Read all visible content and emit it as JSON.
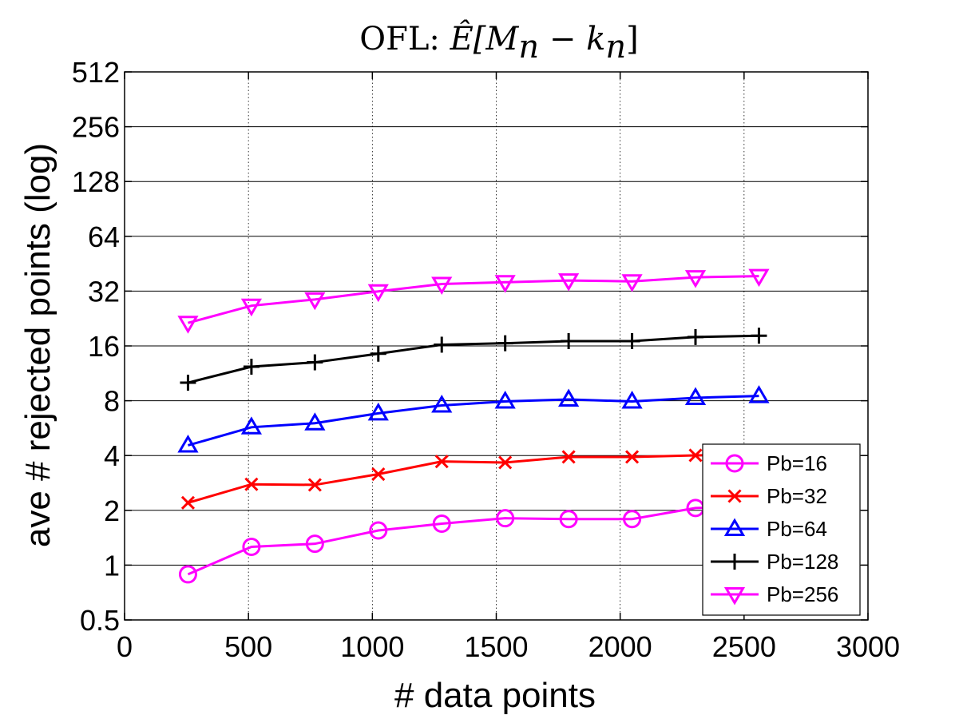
{
  "chart_data": {
    "type": "line",
    "title": "OFL: Ê[Mₙ − kₙ]",
    "title_prefix": "OFL: ",
    "title_math": "Ê[M",
    "title_sub1": "n",
    "title_mid": " − k",
    "title_sub2": "n",
    "title_end": "]",
    "xlabel": "# data points",
    "ylabel": "ave # rejected points (log)",
    "xlim": [
      0,
      3000
    ],
    "ylim": [
      0.5,
      512
    ],
    "yscale": "log2",
    "x_ticks": [
      0,
      500,
      1000,
      1500,
      2000,
      2500,
      3000
    ],
    "y_ticks": [
      0.5,
      1,
      2,
      4,
      8,
      16,
      32,
      64,
      128,
      256,
      512
    ],
    "x_tick_labels": [
      "0",
      "500",
      "1000",
      "1500",
      "2000",
      "2500",
      "3000"
    ],
    "y_tick_labels": [
      "0.5",
      "1",
      "2",
      "4",
      "8",
      "16",
      "32",
      "64",
      "128",
      "256",
      "512"
    ],
    "grid": "x dotted, y solid",
    "legend_position": "bottom-right",
    "x": [
      256,
      512,
      768,
      1024,
      1280,
      1536,
      1792,
      2048,
      2304,
      2560
    ],
    "series": [
      {
        "name": "Pb=16",
        "color": "#ff00ff",
        "marker": "circle",
        "values": [
          0.89,
          1.26,
          1.31,
          1.55,
          1.69,
          1.81,
          1.79,
          1.79,
          2.06,
          2.1
        ]
      },
      {
        "name": "Pb=32",
        "color": "#ff0000",
        "marker": "x",
        "values": [
          2.2,
          2.78,
          2.76,
          3.16,
          3.71,
          3.66,
          3.93,
          3.93,
          4.01,
          4.05
        ]
      },
      {
        "name": "Pb=64",
        "color": "#0000ff",
        "marker": "triangle-up",
        "values": [
          4.55,
          5.72,
          6.02,
          6.82,
          7.54,
          7.93,
          8.13,
          7.93,
          8.3,
          8.5
        ]
      },
      {
        "name": "Pb=128",
        "color": "#000000",
        "marker": "plus",
        "values": [
          10.05,
          12.3,
          13.0,
          14.5,
          16.25,
          16.55,
          17.0,
          17.0,
          17.9,
          18.2
        ]
      },
      {
        "name": "Pb=256",
        "color": "#ff00ff",
        "marker": "triangle-down",
        "values": [
          21.4,
          26.6,
          28.8,
          31.9,
          35.0,
          35.8,
          36.6,
          36.2,
          38.1,
          38.7
        ]
      }
    ]
  }
}
